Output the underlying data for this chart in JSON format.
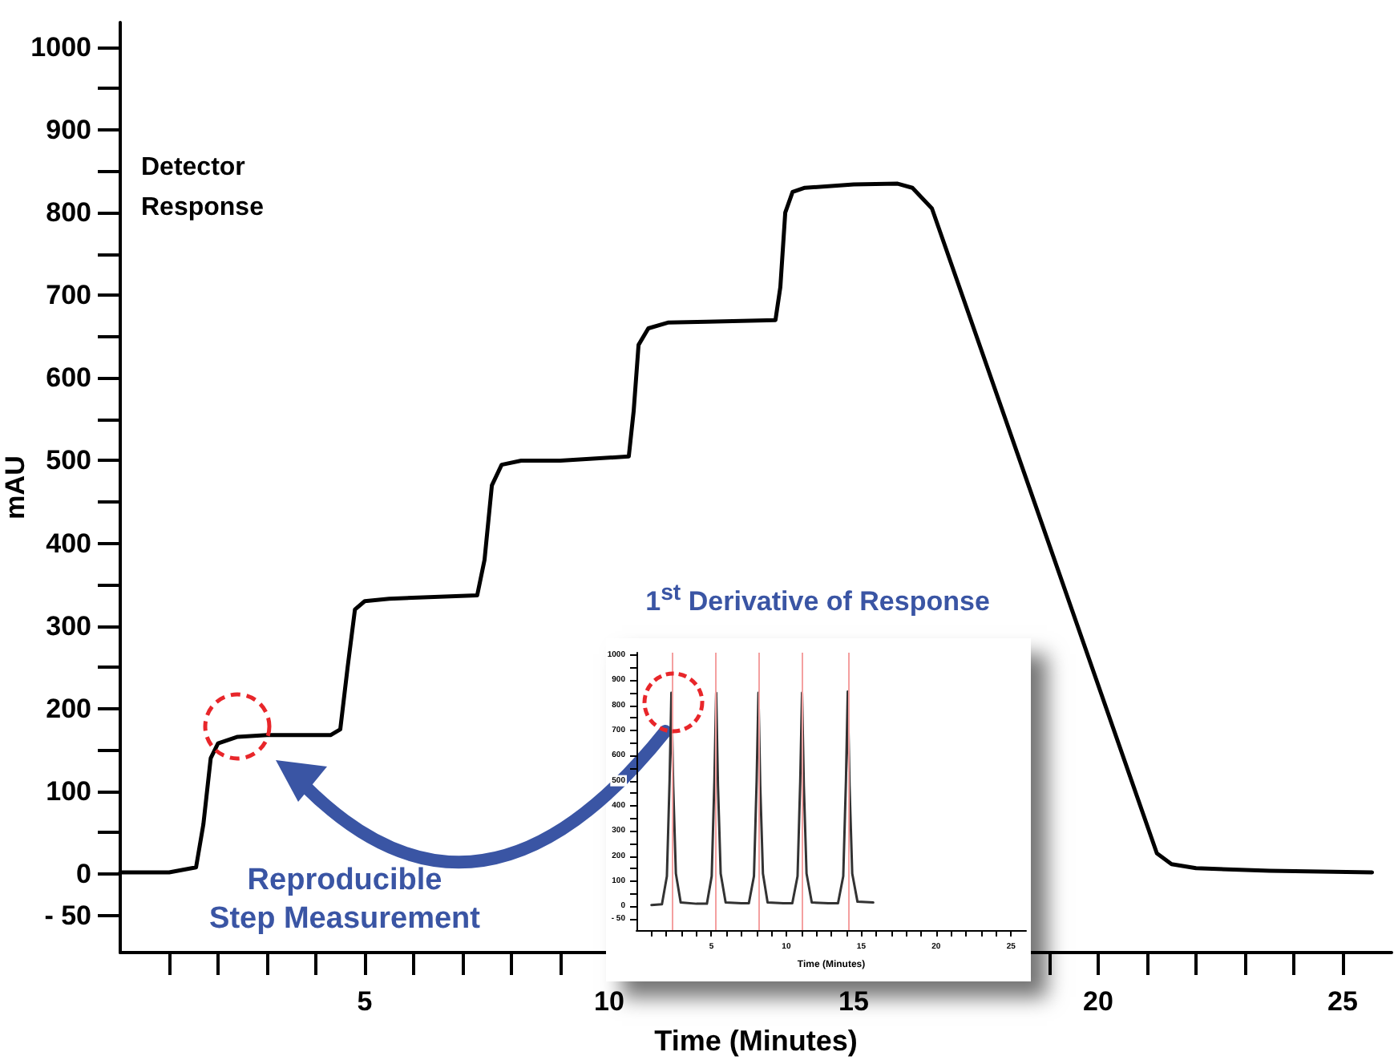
{
  "chart_data": [
    {
      "type": "line",
      "xlabel": "Time (Minutes)",
      "ylabel": "mAU",
      "annotations": [
        "Detector\nResponse",
        "Reproducible\nStep Measurement"
      ],
      "marker": "none",
      "line_style": "solid",
      "x": [
        0,
        1.0,
        1.55,
        1.7,
        1.85,
        2.0,
        2.4,
        3.0,
        4.3,
        4.5,
        4.65,
        4.8,
        5.0,
        5.5,
        7.3,
        7.45,
        7.6,
        7.8,
        8.2,
        9.0,
        10.4,
        10.5,
        10.6,
        10.8,
        11.2,
        12.0,
        13.4,
        13.5,
        13.6,
        13.75,
        14.0,
        15.0,
        15.9,
        16.2,
        16.6,
        21.2,
        21.5,
        22.0,
        23.5,
        25.6
      ],
      "series": [
        {
          "color": "#000000",
          "values": [
            2,
            2,
            8,
            60,
            140,
            158,
            166,
            168,
            168,
            175,
            250,
            320,
            330,
            333,
            337,
            380,
            470,
            495,
            500,
            500,
            505,
            560,
            640,
            660,
            667,
            668,
            670,
            710,
            800,
            825,
            830,
            834,
            835,
            830,
            805,
            25,
            12,
            7,
            4,
            2
          ]
        }
      ],
      "xlim": [
        0,
        26
      ],
      "xticks": [
        {
          "value": 1,
          "label": null
        },
        {
          "value": 2,
          "label": null
        },
        {
          "value": 3,
          "label": null
        },
        {
          "value": 4,
          "label": null
        },
        5,
        {
          "value": 6,
          "label": null
        },
        {
          "value": 7,
          "label": null
        },
        {
          "value": 8,
          "label": null
        },
        {
          "value": 9,
          "label": null
        },
        10,
        {
          "value": 11,
          "label": null
        },
        {
          "value": 12,
          "label": null
        },
        {
          "value": 13,
          "label": null
        },
        {
          "value": 14,
          "label": null
        },
        15,
        {
          "value": 16,
          "label": null
        },
        {
          "value": 17,
          "label": null
        },
        {
          "value": 18,
          "label": null
        },
        {
          "value": 19,
          "label": null
        },
        20,
        {
          "value": 21,
          "label": null
        },
        {
          "value": 22,
          "label": null
        },
        {
          "value": 23,
          "label": null
        },
        {
          "value": 24,
          "label": null
        },
        25
      ],
      "ylim": [
        -95,
        1030
      ],
      "yticks": [
        {
          "value": -50,
          "label": "- 50"
        },
        0,
        {
          "value": 50,
          "label": null
        },
        100,
        {
          "value": 150,
          "label": null
        },
        200,
        {
          "value": 250,
          "label": null
        },
        300,
        {
          "value": 350,
          "label": null
        },
        400,
        {
          "value": 450,
          "label": null
        },
        500,
        {
          "value": 550,
          "label": null
        },
        600,
        {
          "value": 650,
          "label": null
        },
        700,
        {
          "value": 750,
          "label": null
        },
        800,
        {
          "value": 850,
          "label": null
        },
        900,
        {
          "value": 950,
          "label": null
        },
        1000
      ]
    },
    {
      "type": "line",
      "title": "1$^{st}$ Derivative of Response",
      "xlabel": "Time (Minutes)",
      "marker": "none",
      "line_style": "solid",
      "x": [
        1.0,
        1.7,
        2.03,
        2.21,
        2.33,
        2.45,
        2.63,
        2.95,
        4.0,
        4.7,
        5.02,
        5.2,
        5.32,
        5.44,
        5.62,
        5.95,
        7.0,
        7.5,
        7.84,
        8.02,
        8.14,
        8.26,
        8.44,
        8.75,
        9.8,
        10.4,
        10.75,
        10.93,
        11.05,
        11.17,
        11.35,
        11.7,
        12.8,
        13.45,
        13.8,
        13.98,
        14.1,
        14.22,
        14.4,
        14.75,
        15.8
      ],
      "series": [
        {
          "color": "#333333",
          "values": [
            5,
            8,
            120,
            500,
            850,
            480,
            130,
            15,
            10,
            10,
            120,
            500,
            850,
            480,
            130,
            15,
            12,
            12,
            120,
            500,
            850,
            480,
            130,
            15,
            12,
            12,
            120,
            500,
            850,
            480,
            130,
            15,
            12,
            12,
            120,
            500,
            855,
            480,
            130,
            18,
            15
          ]
        }
      ],
      "ref_lines": [
        {
          "axis": "x",
          "value": 2.33,
          "color": "#f4a0a0"
        },
        {
          "axis": "x",
          "value": 5.32,
          "color": "#f4a0a0"
        },
        {
          "axis": "x",
          "value": 8.14,
          "color": "#f4a0a0"
        },
        {
          "axis": "x",
          "value": 11.05,
          "color": "#f4a0a0"
        },
        {
          "axis": "x",
          "value": 14.1,
          "color": "#f4a0a0"
        }
      ],
      "xlim": [
        0,
        26
      ],
      "xticks": [
        {
          "value": 1,
          "label": null
        },
        {
          "value": 2,
          "label": null
        },
        {
          "value": 3,
          "label": null
        },
        {
          "value": 4,
          "label": null
        },
        5,
        {
          "value": 6,
          "label": null
        },
        {
          "value": 7,
          "label": null
        },
        {
          "value": 8,
          "label": null
        },
        {
          "value": 9,
          "label": null
        },
        10,
        {
          "value": 11,
          "label": null
        },
        {
          "value": 12,
          "label": null
        },
        {
          "value": 13,
          "label": null
        },
        {
          "value": 14,
          "label": null
        },
        15,
        {
          "value": 16,
          "label": null
        },
        {
          "value": 17,
          "label": null
        },
        {
          "value": 18,
          "label": null
        },
        {
          "value": 19,
          "label": null
        },
        20,
        {
          "value": 21,
          "label": null
        },
        {
          "value": 22,
          "label": null
        },
        {
          "value": 23,
          "label": null
        },
        {
          "value": 24,
          "label": null
        },
        25
      ],
      "ylim": [
        -95,
        1010
      ],
      "yticks": [
        {
          "value": -50,
          "label": "- 50"
        },
        0,
        {
          "value": 50,
          "label": null
        },
        100,
        {
          "value": 150,
          "label": null
        },
        200,
        {
          "value": 250,
          "label": null
        },
        300,
        {
          "value": 350,
          "label": null
        },
        400,
        {
          "value": 450,
          "label": null
        },
        500,
        {
          "value": 550,
          "label": null
        },
        600,
        {
          "value": 650,
          "label": null
        },
        700,
        {
          "value": 750,
          "label": null
        },
        800,
        {
          "value": 850,
          "label": null
        },
        900,
        {
          "value": 950,
          "label": null
        },
        1000
      ]
    }
  ]
}
